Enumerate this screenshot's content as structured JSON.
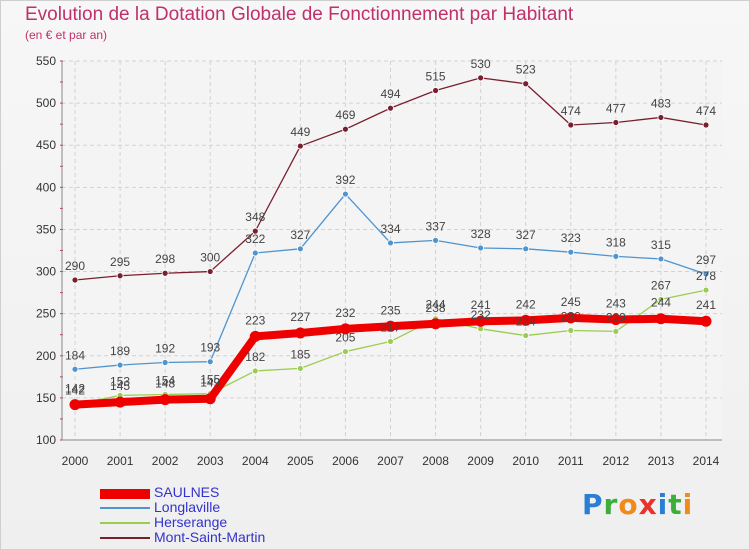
{
  "chart_data": {
    "type": "line",
    "title": "Evolution de la Dotation Globale de Fonctionnement par Habitant",
    "subtitle": "(en € et par an)",
    "xlabel": "",
    "ylabel": "",
    "ylim": [
      100,
      550
    ],
    "yticks": [
      100,
      150,
      200,
      250,
      300,
      350,
      400,
      450,
      500,
      550
    ],
    "x": [
      "2000",
      "2001",
      "2002",
      "2003",
      "2004",
      "2005",
      "2006",
      "2007",
      "2008",
      "2009",
      "2010",
      "2011",
      "2012",
      "2013",
      "2014"
    ],
    "grid": true,
    "legend_position": "bottom-left",
    "series": [
      {
        "name": "Mont-Saint-Martin",
        "color": "#7a1f2e",
        "values": [
          290,
          295,
          298,
          300,
          348,
          449,
          469,
          494,
          515,
          530,
          523,
          474,
          477,
          483,
          474
        ]
      },
      {
        "name": "Longlaville",
        "color": "#4f94cd",
        "values": [
          184,
          189,
          192,
          193,
          322,
          327,
          392,
          334,
          337,
          328,
          327,
          323,
          318,
          315,
          297
        ]
      },
      {
        "name": "Herserange",
        "color": "#9acd4f",
        "values": [
          142,
          153,
          154,
          155,
          182,
          185,
          205,
          217,
          244,
          232,
          224,
          230,
          229,
          267,
          278
        ]
      },
      {
        "name": "SAULNES",
        "color": "#ee0000",
        "values": [
          142,
          145,
          148,
          149,
          223,
          227,
          232,
          235,
          238,
          241,
          242,
          245,
          243,
          244,
          241
        ]
      }
    ]
  },
  "legend": [
    {
      "label": "SAULNES",
      "color": "#ee0000"
    },
    {
      "label": "Longlaville",
      "color": "#4f94cd"
    },
    {
      "label": "Herserange",
      "color": "#9acd4f"
    },
    {
      "label": "Mont-Saint-Martin",
      "color": "#7a1f2e"
    }
  ],
  "logo": {
    "text": "Proxiti"
  }
}
